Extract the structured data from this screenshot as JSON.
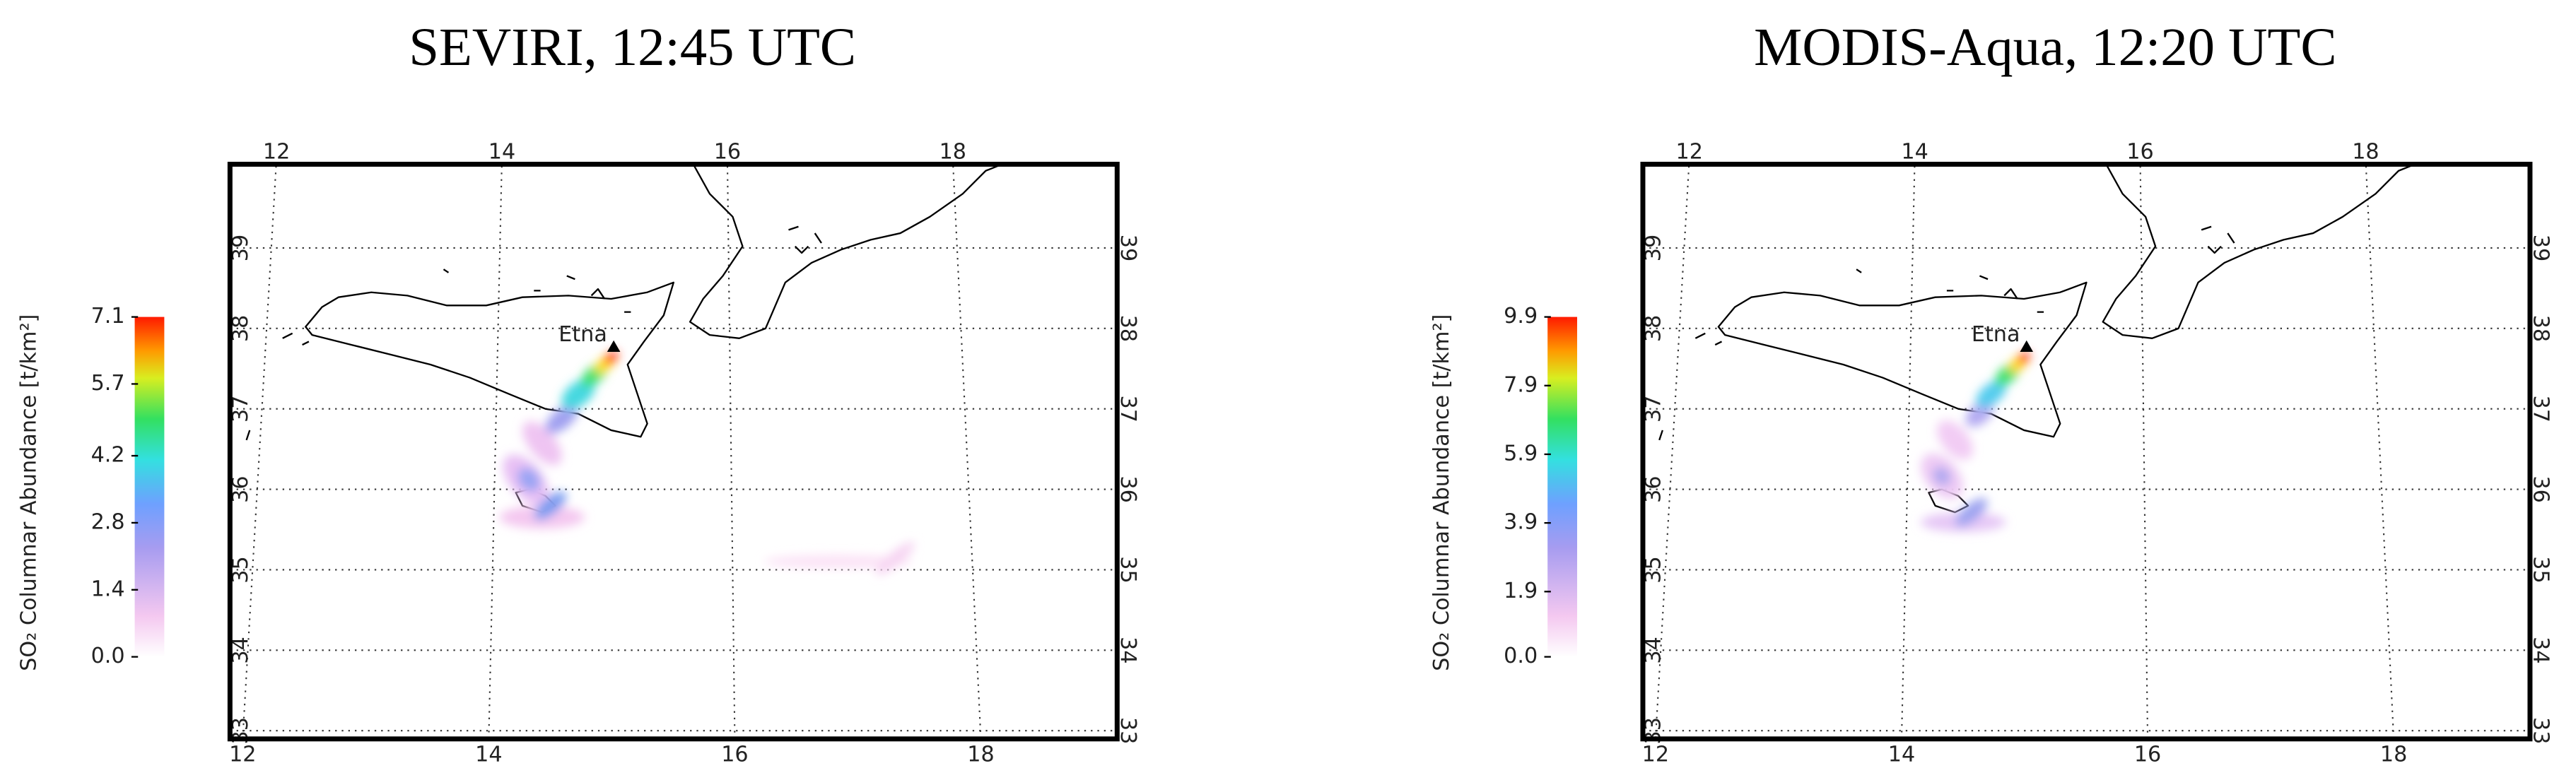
{
  "panels": [
    {
      "title": "SEVIRI, 12:45 UTC",
      "colorbar": {
        "label": "SO₂ Columnar Abundance [t/km²]",
        "ticks": [
          {
            "value": 0,
            "label": "0.0"
          },
          {
            "value": 1.4,
            "label": "1.4"
          },
          {
            "value": 2.8,
            "label": "2.8"
          },
          {
            "value": 4.2,
            "label": "4.2"
          },
          {
            "value": 5.7,
            "label": "5.7"
          },
          {
            "value": 7.1,
            "label": "7.1"
          }
        ]
      },
      "lon_ticks": [
        12,
        14,
        16,
        18
      ],
      "lat_ticks": [
        33,
        34,
        35,
        36,
        37,
        38,
        39
      ],
      "annotation": "Etna"
    },
    {
      "title": "MODIS-Aqua, 12:20 UTC",
      "colorbar": {
        "label": "SO₂ Columnar Abundance [t/km²]",
        "ticks": [
          {
            "value": 0,
            "label": "0.0"
          },
          {
            "value": 1.9,
            "label": "1.9"
          },
          {
            "value": 3.9,
            "label": "3.9"
          },
          {
            "value": 5.9,
            "label": "5.9"
          },
          {
            "value": 7.9,
            "label": "7.9"
          },
          {
            "value": 9.9,
            "label": "9.9"
          }
        ]
      },
      "lon_ticks": [
        12,
        14,
        16,
        18
      ],
      "lat_ticks": [
        33,
        34,
        35,
        36,
        37,
        38,
        39
      ],
      "annotation": "Etna"
    }
  ]
}
